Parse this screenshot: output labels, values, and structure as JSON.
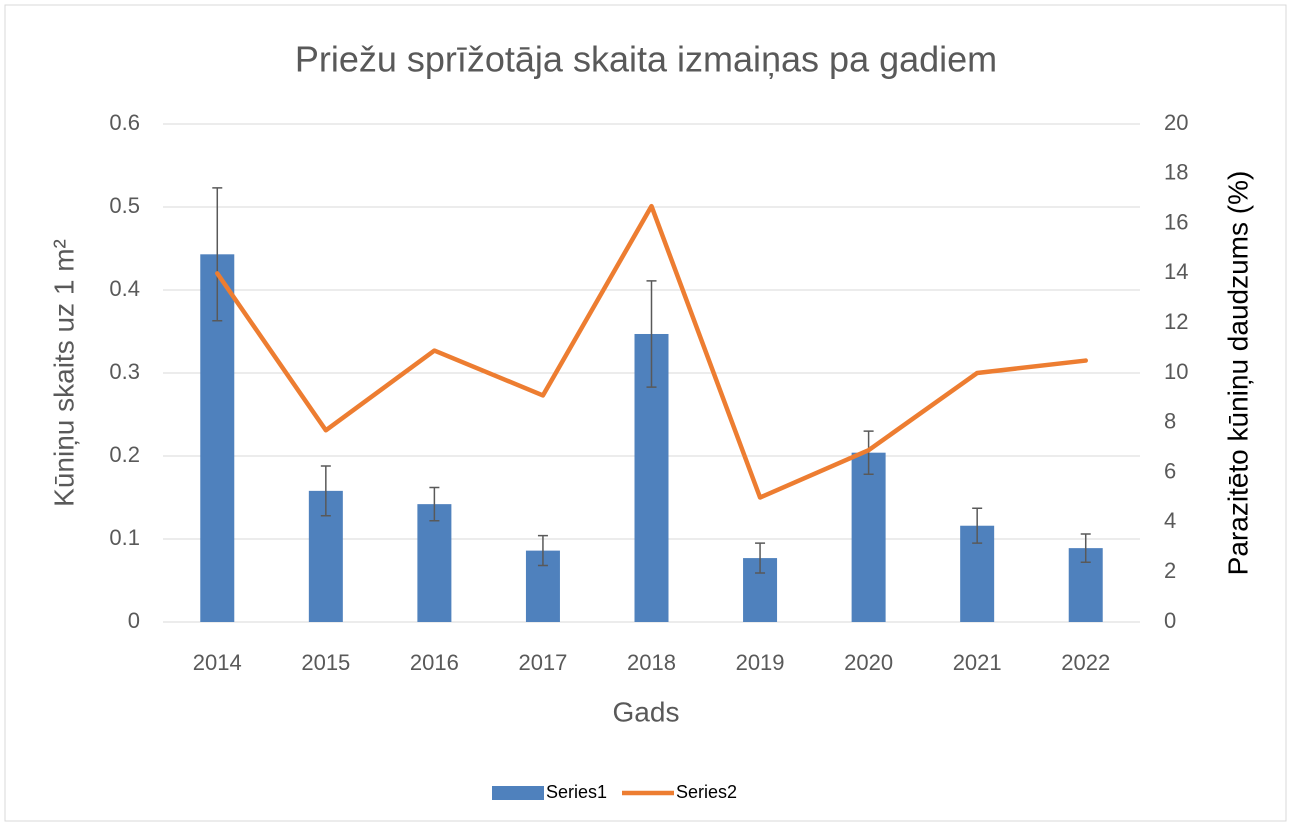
{
  "chart_data": {
    "type": "bar_line",
    "title": "Priežu sprīžotāja skaita izmaiņas pa gadiem",
    "x_label": "Gads",
    "y_label": "Kūniņu skaits uz 1 m²",
    "y2_label": "Parazitēto kūniņu daudzums (%)",
    "categories": [
      "2014",
      "2015",
      "2016",
      "2017",
      "2018",
      "2019",
      "2020",
      "2021",
      "2022"
    ],
    "series": [
      {
        "name": "Series1",
        "type": "bar",
        "color": "#4f81bd",
        "values": [
          0.443,
          0.158,
          0.142,
          0.086,
          0.347,
          0.077,
          0.204,
          0.116,
          0.089
        ],
        "errors": [
          0.08,
          0.03,
          0.02,
          0.018,
          0.064,
          0.018,
          0.026,
          0.021,
          0.017
        ]
      },
      {
        "name": "Series2",
        "type": "line",
        "color": "#ed7d31",
        "axis": "y2",
        "values": [
          14.0,
          7.7,
          10.9,
          9.1,
          16.7,
          5.0,
          6.9,
          10.0,
          10.5
        ]
      }
    ],
    "ylim": [
      0,
      0.6
    ],
    "yticks": [
      0,
      0.1,
      0.2,
      0.3,
      0.4,
      0.5,
      0.6
    ],
    "y2lim": [
      0,
      20
    ],
    "y2ticks": [
      0,
      2,
      4,
      6,
      8,
      10,
      12,
      14,
      16,
      18,
      20
    ],
    "grid": true,
    "legend": "bottom"
  }
}
